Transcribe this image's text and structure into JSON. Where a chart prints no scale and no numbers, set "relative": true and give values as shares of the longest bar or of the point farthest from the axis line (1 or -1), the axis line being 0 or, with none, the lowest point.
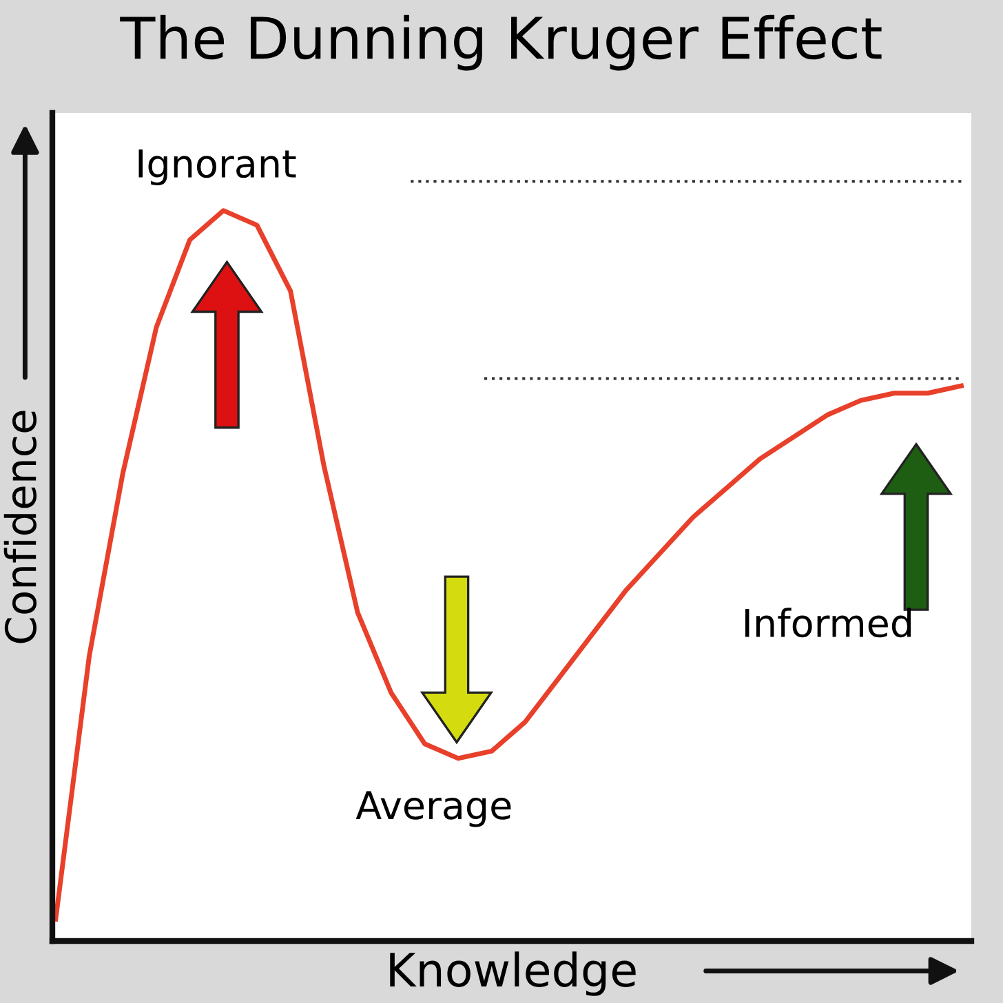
{
  "chart_data": {
    "type": "line",
    "title": "The Dunning Kruger Effect",
    "xlabel": "Knowledge",
    "ylabel": "Confidence",
    "relative": true,
    "categories": [
      null,
      null,
      null,
      null,
      null,
      null,
      null,
      null,
      null,
      null,
      null,
      null,
      null,
      null,
      null,
      null,
      null,
      null,
      null,
      null,
      null,
      null,
      null,
      null,
      null,
      null,
      null,
      null
    ],
    "series": [
      {
        "color": "#e8402a",
        "values": [
          0.03,
          0.39,
          0.64,
          0.84,
          0.96,
          1.0,
          0.98,
          0.89,
          0.65,
          0.45,
          0.34,
          0.27,
          0.25,
          0.26,
          0.3,
          0.36,
          0.42,
          0.48,
          0.53,
          0.58,
          0.62,
          0.66,
          0.69,
          0.72,
          0.74,
          0.75,
          0.75,
          0.76
        ]
      }
    ],
    "ref_lines": [
      {
        "axis": "y",
        "value": 1.04,
        "color": "#333333",
        "line_style": "dotted"
      },
      {
        "axis": "y",
        "value": 0.77,
        "color": "#333333",
        "line_style": "dotted"
      }
    ],
    "annotations": [
      "Ignorant",
      "Average",
      "Informed"
    ],
    "grid": false,
    "legend": false,
    "marker": "none",
    "line_style": "solid"
  }
}
